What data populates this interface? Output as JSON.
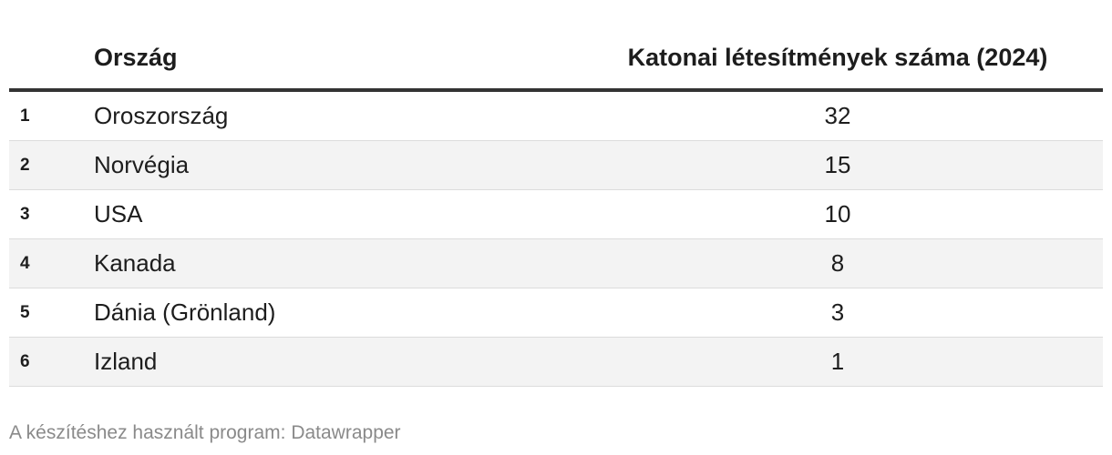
{
  "table": {
    "header": {
      "country": "Ország",
      "count": "Katonai létesítmények száma (2024)"
    },
    "rows": [
      [
        1,
        "Oroszország",
        32
      ],
      [
        2,
        "Norvégia",
        15
      ],
      [
        3,
        "USA",
        10
      ],
      [
        4,
        "Kanada",
        8
      ],
      [
        5,
        "Dánia (Grönland)",
        3
      ],
      [
        6,
        "Izland",
        1
      ]
    ]
  },
  "footer": "A készítéshez használt program: Datawrapper"
}
